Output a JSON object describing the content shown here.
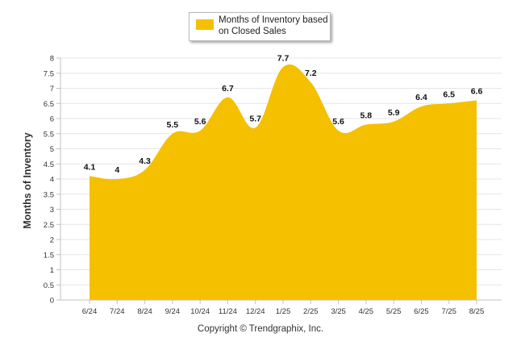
{
  "chart_data": {
    "type": "area",
    "categories": [
      "6/24",
      "7/24",
      "8/24",
      "9/24",
      "10/24",
      "11/24",
      "12/24",
      "1/25",
      "2/25",
      "3/25",
      "4/25",
      "5/25",
      "6/25",
      "7/25",
      "8/25"
    ],
    "series": [
      {
        "name": "Months of Inventory based on Closed Sales",
        "values": [
          4.1,
          4,
          4.3,
          5.5,
          5.6,
          6.7,
          5.7,
          7.7,
          7.2,
          5.6,
          5.8,
          5.9,
          6.4,
          6.5,
          6.6
        ]
      }
    ],
    "ylabel": "Months of Inventory",
    "xlabel": "",
    "ylim": [
      0,
      8
    ],
    "yticks": [
      "0",
      "0.5",
      "1",
      "1.5",
      "2",
      "2.5",
      "3",
      "3.5",
      "4",
      "4.5",
      "5",
      "5.5",
      "6",
      "6.5",
      "7",
      "7.5",
      "8"
    ],
    "grid": true,
    "legend": "top-center",
    "color": "#F5C000",
    "data_labels": [
      "4.1",
      "4",
      "4.3",
      "5.5",
      "5.6",
      "6.7",
      "5.7",
      "7.7",
      "7.2",
      "5.6",
      "5.8",
      "5.9",
      "6.4",
      "6.5",
      "6.6"
    ]
  },
  "footer": {
    "copyright": "Copyright © Trendgraphix, Inc."
  }
}
